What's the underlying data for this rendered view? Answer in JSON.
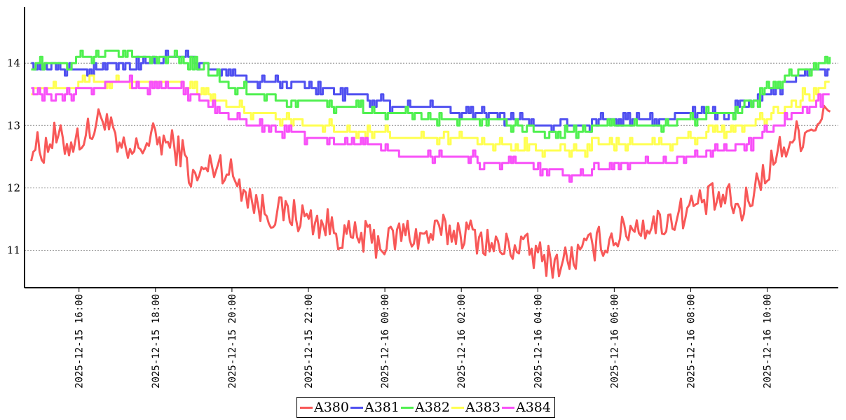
{
  "chart_data": {
    "type": "line",
    "title": "",
    "xlabel": "",
    "ylabel": "",
    "x_range": [
      "2025-12-15 14:40",
      "2025-12-16 11:45"
    ],
    "ylim": [
      10.4,
      14.9
    ],
    "yticks": [
      11,
      12,
      13,
      14
    ],
    "xticks": [
      "2025-12-15 16:00",
      "2025-12-15 18:00",
      "2025-12-15 20:00",
      "2025-12-15 22:00",
      "2025-12-16 00:00",
      "2025-12-16 02:00",
      "2025-12-16 04:00",
      "2025-12-16 06:00",
      "2025-12-16 08:00",
      "2025-12-16 10:00"
    ],
    "grid": "horizontal-dotted",
    "legend_position": "bottom-center",
    "series": [
      {
        "name": "A380",
        "color": "#f85858",
        "x": [
          "2025-12-15 14:45",
          "2025-12-15 15:00",
          "2025-12-15 15:20",
          "2025-12-15 15:40",
          "2025-12-15 16:00",
          "2025-12-15 16:20",
          "2025-12-15 16:40",
          "2025-12-15 17:00",
          "2025-12-15 17:20",
          "2025-12-15 17:40",
          "2025-12-15 18:00",
          "2025-12-15 18:20",
          "2025-12-15 18:40",
          "2025-12-15 19:00",
          "2025-12-15 19:20",
          "2025-12-15 19:40",
          "2025-12-15 20:00",
          "2025-12-15 20:20",
          "2025-12-15 20:40",
          "2025-12-15 21:00",
          "2025-12-15 21:30",
          "2025-12-15 22:00",
          "2025-12-15 22:30",
          "2025-12-15 23:00",
          "2025-12-15 23:30",
          "2025-12-16 00:00",
          "2025-12-16 00:30",
          "2025-12-16 01:00",
          "2025-12-16 01:30",
          "2025-12-16 02:00",
          "2025-12-16 02:30",
          "2025-12-16 03:00",
          "2025-12-16 03:30",
          "2025-12-16 04:00",
          "2025-12-16 04:30",
          "2025-12-16 05:00",
          "2025-12-16 05:30",
          "2025-12-16 06:00",
          "2025-12-16 06:30",
          "2025-12-16 07:00",
          "2025-12-16 07:30",
          "2025-12-16 08:00",
          "2025-12-16 08:30",
          "2025-12-16 09:00",
          "2025-12-16 09:20",
          "2025-12-16 09:40",
          "2025-12-16 10:00",
          "2025-12-16 10:20",
          "2025-12-16 10:40",
          "2025-12-16 11:00",
          "2025-12-16 11:20",
          "2025-12-16 11:40"
        ],
        "values": [
          12.7,
          12.6,
          12.8,
          12.7,
          12.8,
          12.9,
          13.2,
          12.6,
          12.5,
          12.7,
          12.8,
          12.7,
          12.6,
          12.1,
          12.3,
          12.4,
          12.2,
          12.0,
          11.7,
          11.6,
          11.6,
          11.5,
          11.4,
          11.2,
          11.2,
          11.1,
          11.3,
          11.2,
          11.3,
          11.3,
          11.2,
          11.0,
          11.1,
          10.9,
          10.8,
          10.9,
          11.1,
          11.2,
          11.4,
          11.4,
          11.5,
          11.7,
          11.8,
          11.8,
          11.6,
          12.0,
          12.3,
          12.6,
          12.8,
          12.9,
          13.1,
          13.2
        ]
      },
      {
        "name": "A381",
        "color": "#5050f0",
        "x": [
          "2025-12-15 14:45",
          "2025-12-15 15:30",
          "2025-12-15 16:15",
          "2025-12-15 17:00",
          "2025-12-15 17:45",
          "2025-12-15 18:30",
          "2025-12-15 19:15",
          "2025-12-15 20:00",
          "2025-12-15 20:45",
          "2025-12-15 21:30",
          "2025-12-15 22:15",
          "2025-12-15 23:00",
          "2025-12-15 23:45",
          "2025-12-16 00:30",
          "2025-12-16 01:15",
          "2025-12-16 02:00",
          "2025-12-16 02:45",
          "2025-12-16 03:30",
          "2025-12-16 04:15",
          "2025-12-16 05:00",
          "2025-12-16 05:45",
          "2025-12-16 06:30",
          "2025-12-16 07:15",
          "2025-12-16 08:00",
          "2025-12-16 08:45",
          "2025-12-16 09:30",
          "2025-12-16 10:15",
          "2025-12-16 11:00",
          "2025-12-16 11:40"
        ],
        "values": [
          13.9,
          13.9,
          13.9,
          14.0,
          14.0,
          14.1,
          14.0,
          13.8,
          13.7,
          13.7,
          13.6,
          13.5,
          13.4,
          13.3,
          13.3,
          13.2,
          13.2,
          13.1,
          13.0,
          13.0,
          13.1,
          13.1,
          13.1,
          13.2,
          13.2,
          13.3,
          13.6,
          13.9,
          13.9
        ]
      },
      {
        "name": "A382",
        "color": "#50f050",
        "x": [
          "2025-12-15 14:45",
          "2025-12-15 15:30",
          "2025-12-15 16:15",
          "2025-12-15 17:00",
          "2025-12-15 17:45",
          "2025-12-15 18:30",
          "2025-12-15 19:15",
          "2025-12-15 20:00",
          "2025-12-15 20:45",
          "2025-12-15 21:30",
          "2025-12-15 22:15",
          "2025-12-15 23:00",
          "2025-12-15 23:45",
          "2025-12-16 00:30",
          "2025-12-16 01:15",
          "2025-12-16 02:00",
          "2025-12-16 02:45",
          "2025-12-16 03:30",
          "2025-12-16 04:15",
          "2025-12-16 05:00",
          "2025-12-16 05:45",
          "2025-12-16 06:30",
          "2025-12-16 07:15",
          "2025-12-16 08:00",
          "2025-12-16 08:45",
          "2025-12-16 09:30",
          "2025-12-16 10:15",
          "2025-12-16 11:00",
          "2025-12-16 11:40"
        ],
        "values": [
          14.0,
          14.0,
          14.1,
          14.2,
          14.1,
          14.1,
          13.9,
          13.6,
          13.5,
          13.4,
          13.4,
          13.3,
          13.2,
          13.2,
          13.1,
          13.1,
          13.1,
          13.0,
          12.9,
          12.9,
          13.0,
          13.0,
          13.0,
          13.1,
          13.2,
          13.3,
          13.7,
          13.9,
          14.0
        ]
      },
      {
        "name": "A383",
        "color": "#ffff50",
        "x": [
          "2025-12-15 14:45",
          "2025-12-15 15:30",
          "2025-12-15 16:15",
          "2025-12-15 17:00",
          "2025-12-15 17:45",
          "2025-12-15 18:30",
          "2025-12-15 19:15",
          "2025-12-15 20:00",
          "2025-12-15 20:45",
          "2025-12-15 21:30",
          "2025-12-15 22:15",
          "2025-12-15 23:00",
          "2025-12-15 23:45",
          "2025-12-16 00:30",
          "2025-12-16 01:15",
          "2025-12-16 02:00",
          "2025-12-16 02:45",
          "2025-12-16 03:30",
          "2025-12-16 04:15",
          "2025-12-16 05:00",
          "2025-12-16 05:45",
          "2025-12-16 06:30",
          "2025-12-16 07:15",
          "2025-12-16 08:00",
          "2025-12-16 08:45",
          "2025-12-16 09:30",
          "2025-12-16 10:15",
          "2025-12-16 11:00",
          "2025-12-16 11:40"
        ],
        "values": [
          13.6,
          13.6,
          13.7,
          13.7,
          13.7,
          13.7,
          13.5,
          13.3,
          13.2,
          13.1,
          13.0,
          12.9,
          12.9,
          12.8,
          12.8,
          12.8,
          12.7,
          12.7,
          12.6,
          12.6,
          12.7,
          12.7,
          12.7,
          12.8,
          12.9,
          13.0,
          13.2,
          13.5,
          13.7
        ]
      },
      {
        "name": "A384",
        "color": "#f850f8",
        "x": [
          "2025-12-15 14:45",
          "2025-12-15 15:30",
          "2025-12-15 16:15",
          "2025-12-15 17:00",
          "2025-12-15 17:45",
          "2025-12-15 18:30",
          "2025-12-15 19:15",
          "2025-12-15 20:00",
          "2025-12-15 20:45",
          "2025-12-15 21:30",
          "2025-12-15 22:15",
          "2025-12-15 23:00",
          "2025-12-15 23:45",
          "2025-12-16 00:30",
          "2025-12-16 01:15",
          "2025-12-16 02:00",
          "2025-12-16 02:45",
          "2025-12-16 03:30",
          "2025-12-16 04:15",
          "2025-12-16 05:00",
          "2025-12-16 05:45",
          "2025-12-16 06:30",
          "2025-12-16 07:15",
          "2025-12-16 08:00",
          "2025-12-16 08:45",
          "2025-12-16 09:30",
          "2025-12-16 10:15",
          "2025-12-16 11:00",
          "2025-12-16 11:40"
        ],
        "values": [
          13.5,
          13.5,
          13.6,
          13.7,
          13.6,
          13.6,
          13.4,
          13.1,
          13.0,
          12.9,
          12.8,
          12.7,
          12.7,
          12.5,
          12.5,
          12.5,
          12.4,
          12.4,
          12.3,
          12.2,
          12.3,
          12.4,
          12.4,
          12.5,
          12.6,
          12.7,
          13.0,
          13.3,
          13.5
        ]
      }
    ]
  }
}
